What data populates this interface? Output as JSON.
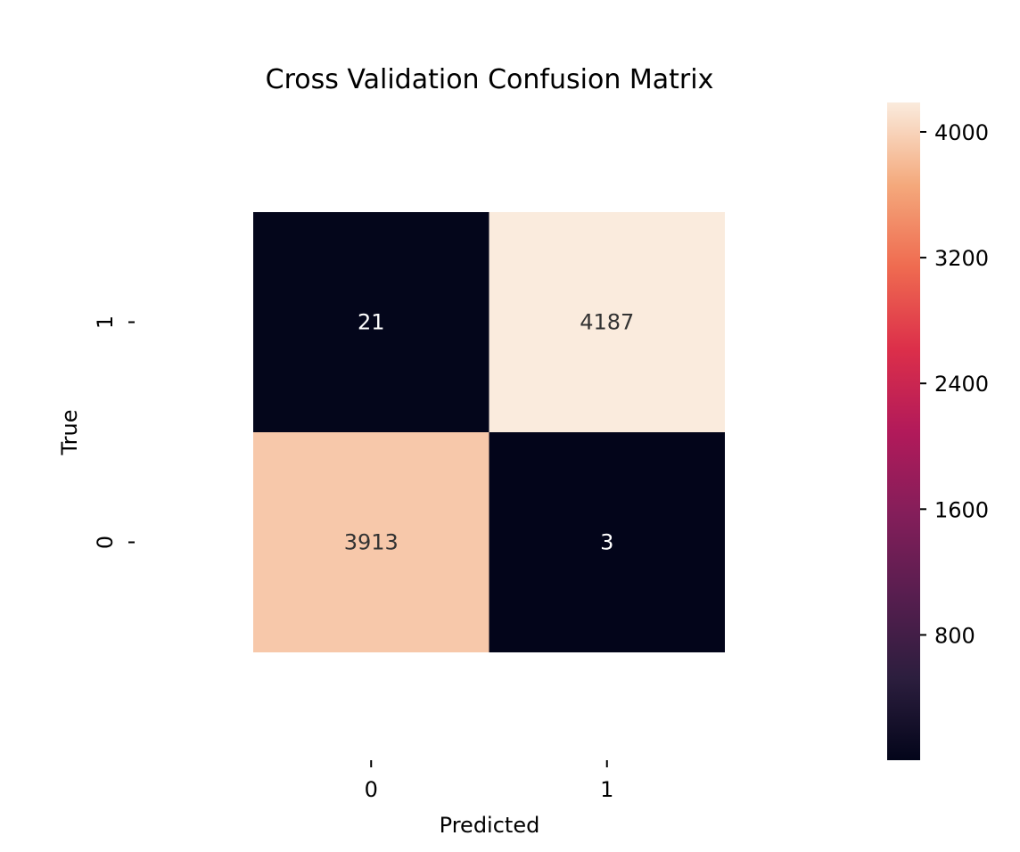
{
  "chart_data": {
    "type": "heatmap",
    "title": "Cross Validation Confusion Matrix",
    "xlabel": "Predicted",
    "ylabel": "True",
    "x_categories": [
      "0",
      "1"
    ],
    "y_categories_top_to_bottom": [
      "1",
      "0"
    ],
    "cells": [
      {
        "true": "1",
        "predicted": "0",
        "value": 21
      },
      {
        "true": "1",
        "predicted": "1",
        "value": 4187
      },
      {
        "true": "0",
        "predicted": "0",
        "value": 3913
      },
      {
        "true": "0",
        "predicted": "1",
        "value": 3
      }
    ],
    "colorbar": {
      "vmin": 3,
      "vmax": 4187,
      "ticks": [
        800,
        1600,
        2400,
        3200,
        4000
      ],
      "tick_labels": [
        "800",
        "1600",
        "2400",
        "3200",
        "4000"
      ],
      "colormap": "rocket"
    },
    "colors": {
      "low": "#0d0b26",
      "high": "#f6ece3",
      "text_on_dark": "#ffffff",
      "text_on_light": "#333333"
    }
  }
}
